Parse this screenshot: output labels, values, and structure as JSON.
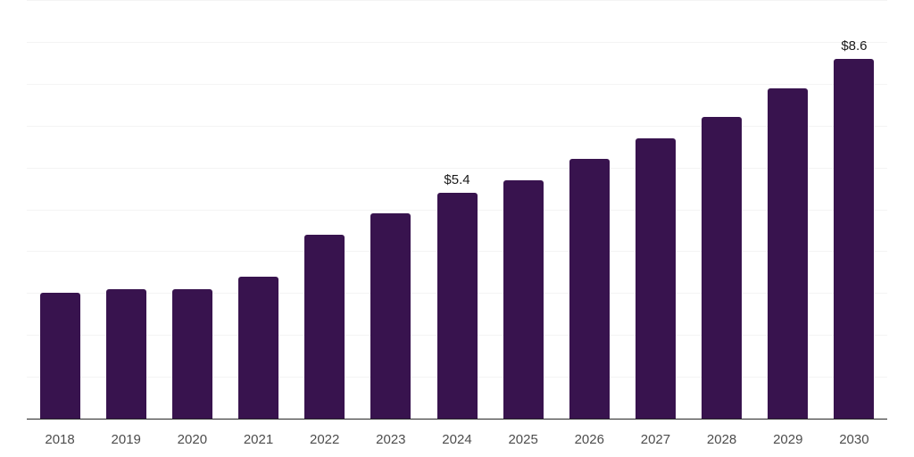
{
  "chart_data": {
    "type": "bar",
    "title": "",
    "xlabel": "",
    "ylabel": "",
    "categories": [
      "2018",
      "2019",
      "2020",
      "2021",
      "2022",
      "2023",
      "2024",
      "2025",
      "2026",
      "2027",
      "2028",
      "2029",
      "2030"
    ],
    "values": [
      3.0,
      3.1,
      3.1,
      3.4,
      4.4,
      4.9,
      5.4,
      5.7,
      6.2,
      6.7,
      7.2,
      7.9,
      8.6
    ],
    "point_labels": [
      "",
      "",
      "",
      "",
      "",
      "",
      "$5.4",
      "",
      "",
      "",
      "",
      "",
      "$8.6"
    ],
    "ylim": [
      0,
      10
    ],
    "gridline_step": 1,
    "grid": "horizontal",
    "legend": "none",
    "colors": {
      "bar": "#38134e",
      "gridline": "#f4f4f4",
      "axis_line": "#262626",
      "tick_label": "#4d4d4d",
      "point_label": "#1a1a1a",
      "background": "#ffffff"
    }
  }
}
